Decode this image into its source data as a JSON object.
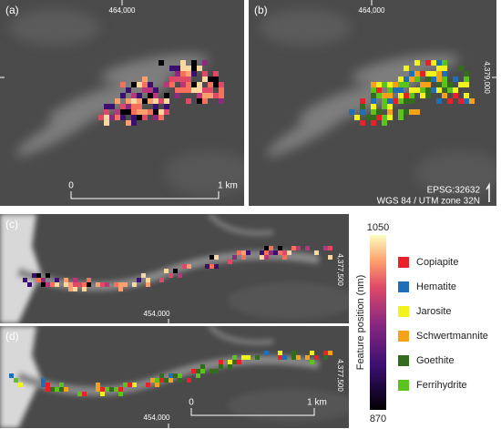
{
  "panels": [
    {
      "label": "(a)",
      "x_coord": "464,000",
      "scale_bar": {
        "start": "0",
        "end": "1 km"
      }
    },
    {
      "label": "(b)",
      "x_coord": "464,000",
      "y_coord": "4,379,000"
    },
    {
      "label": "(c)",
      "x_coord": "454,000",
      "y_coord": "4,377,500"
    },
    {
      "label": "(d)",
      "x_coord": "454,000",
      "y_coord": "4,377,500",
      "scale_bar": {
        "start": "0",
        "end": "1 km"
      }
    }
  ],
  "crs": {
    "code": "EPSG:32632",
    "datum": "WGS 84 / UTM zone 32N"
  },
  "colorbar": {
    "title": "Feature position (nm)",
    "max": 1050,
    "min": 870
  },
  "legend": [
    {
      "name": "Copiapite",
      "color": "#e8202a"
    },
    {
      "name": "Hematite",
      "color": "#1f6fb8"
    },
    {
      "name": "Jarosite",
      "color": "#f2f21c"
    },
    {
      "name": "Schwertmannite",
      "color": "#f5a21a"
    },
    {
      "name": "Goethite",
      "color": "#356b1f"
    },
    {
      "name": "Ferrihydrite",
      "color": "#5cc21c"
    }
  ]
}
